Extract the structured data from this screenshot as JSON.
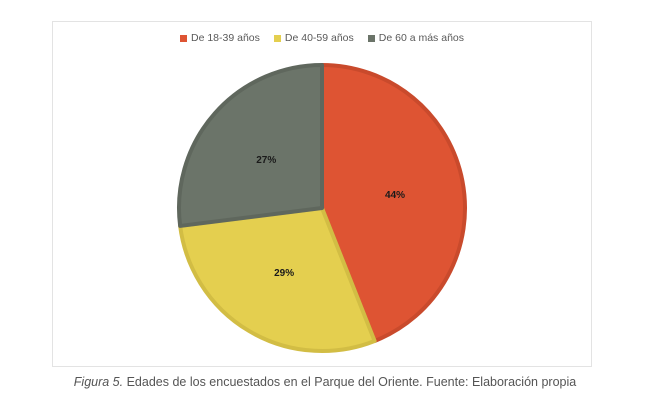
{
  "chart_data": {
    "type": "pie",
    "title": "",
    "categories": [
      "De 18-39 años",
      "De 40-59 años",
      "De 60 a más años"
    ],
    "values": [
      44,
      29,
      27
    ],
    "labels": [
      "44%",
      "29%",
      "27%"
    ],
    "colors": [
      "#de5433",
      "#e4cf4f",
      "#6b7469"
    ],
    "border_colors": [
      "#c94a2c",
      "#d2bd44",
      "#5f675d"
    ],
    "legend_position": "top",
    "start_angle_deg": 0,
    "direction": "clockwise"
  },
  "legend": {
    "items": [
      {
        "label": "De 18-39 años",
        "color": "#de5433"
      },
      {
        "label": "De 40-59 años",
        "color": "#e4cf4f"
      },
      {
        "label": "De 60 a más años",
        "color": "#6b7469"
      }
    ]
  },
  "caption": {
    "figure_label": "Figura 5.",
    "text": " Edades de los encuestados en el Parque del Oriente. Fuente: Elaboración propia"
  }
}
